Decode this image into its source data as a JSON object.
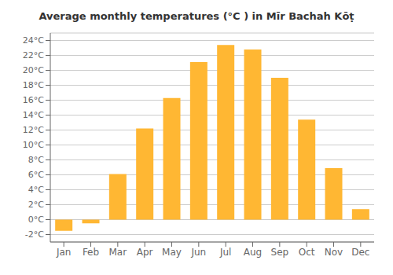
{
  "chart_data": {
    "type": "bar",
    "title": "Average monthly temperatures (°C ) in Mīr Bachah Kōṭ",
    "categories": [
      "Jan",
      "Feb",
      "Mar",
      "Apr",
      "May",
      "Jun",
      "Jul",
      "Aug",
      "Sep",
      "Oct",
      "Nov",
      "Dec"
    ],
    "values": [
      -1.5,
      -0.5,
      6.1,
      12.2,
      16.3,
      21.1,
      23.4,
      22.8,
      19.0,
      13.4,
      6.9,
      1.4
    ],
    "color": "#FFB733",
    "ylim": [
      -3,
      25
    ],
    "yticks": [
      {
        "value": -2,
        "label": "-2°C"
      },
      {
        "value": 0,
        "label": "0°C"
      },
      {
        "value": 2,
        "label": "2°C"
      },
      {
        "value": 4,
        "label": "4°C"
      },
      {
        "value": 6,
        "label": "6°C"
      },
      {
        "value": 8,
        "label": "8°C"
      },
      {
        "value": 10,
        "label": "10°C"
      },
      {
        "value": 12,
        "label": "12°C"
      },
      {
        "value": 14,
        "label": "14°C"
      },
      {
        "value": 16,
        "label": "16°C"
      },
      {
        "value": 18,
        "label": "18°C"
      },
      {
        "value": 20,
        "label": "20°C"
      },
      {
        "value": 22,
        "label": "22°C"
      },
      {
        "value": 24,
        "label": "24°C"
      }
    ],
    "grid": true
  }
}
